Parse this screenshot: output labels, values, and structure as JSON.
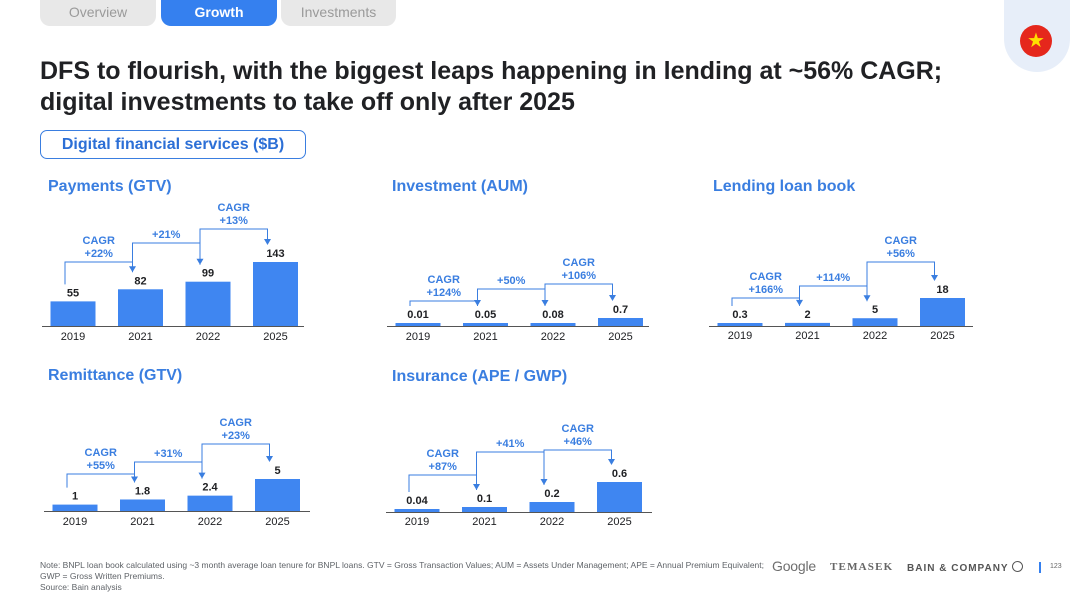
{
  "tabs": [
    {
      "label": "Overview",
      "active": false
    },
    {
      "label": "Growth",
      "active": true
    },
    {
      "label": "Investments",
      "active": false
    }
  ],
  "flag_icon": "vietnam-flag-icon",
  "headline": "DFS to flourish, with the biggest leaps happening in lending at ~56% CAGR; digital investments to take off only after 2025",
  "section_label": "Digital financial services ($B)",
  "colors": {
    "bar": "#3f86f1",
    "accent": "#3a7ee0",
    "axis": "#555555",
    "text": "#202124"
  },
  "chart_data": [
    {
      "type": "bar",
      "title": "Payments (GTV)",
      "categories": [
        "2019",
        "2021",
        "2022",
        "2025"
      ],
      "values": [
        55,
        82,
        99,
        143
      ],
      "value_labels": [
        "55",
        "82",
        "99",
        "143"
      ],
      "annotations": [
        {
          "from": 0,
          "to": 1,
          "text": [
            "CAGR",
            "+22%"
          ]
        },
        {
          "from": 1,
          "to": 2,
          "text": [
            "+21%"
          ]
        },
        {
          "from": 2,
          "to": 3,
          "text": [
            "CAGR",
            "+13%"
          ]
        }
      ]
    },
    {
      "type": "bar",
      "title": "Investment (AUM)",
      "categories": [
        "2019",
        "2021",
        "2022",
        "2025"
      ],
      "values": [
        0.01,
        0.05,
        0.08,
        0.7
      ],
      "value_labels": [
        "0.01",
        "0.05",
        "0.08",
        "0.7"
      ],
      "annotations": [
        {
          "from": 0,
          "to": 1,
          "text": [
            "CAGR",
            "+124%"
          ]
        },
        {
          "from": 1,
          "to": 2,
          "text": [
            "+50%"
          ]
        },
        {
          "from": 2,
          "to": 3,
          "text": [
            "CAGR",
            "+106%"
          ]
        }
      ]
    },
    {
      "type": "bar",
      "title": "Lending loan book",
      "categories": [
        "2019",
        "2021",
        "2022",
        "2025"
      ],
      "values": [
        0.3,
        2,
        5,
        18
      ],
      "value_labels": [
        "0.3",
        "2",
        "5",
        "18"
      ],
      "annotations": [
        {
          "from": 0,
          "to": 1,
          "text": [
            "CAGR",
            "+166%"
          ]
        },
        {
          "from": 1,
          "to": 2,
          "text": [
            "+114%"
          ]
        },
        {
          "from": 2,
          "to": 3,
          "text": [
            "CAGR",
            "+56%"
          ]
        }
      ]
    },
    {
      "type": "bar",
      "title": "Remittance (GTV)",
      "categories": [
        "2019",
        "2021",
        "2022",
        "2025"
      ],
      "values": [
        1,
        1.8,
        2.4,
        5
      ],
      "value_labels": [
        "1",
        "1.8",
        "2.4",
        "5"
      ],
      "annotations": [
        {
          "from": 0,
          "to": 1,
          "text": [
            "CAGR",
            "+55%"
          ]
        },
        {
          "from": 1,
          "to": 2,
          "text": [
            "+31%"
          ]
        },
        {
          "from": 2,
          "to": 3,
          "text": [
            "CAGR",
            "+23%"
          ]
        }
      ]
    },
    {
      "type": "bar",
      "title": "Insurance (APE / GWP)",
      "categories": [
        "2019",
        "2021",
        "2022",
        "2025"
      ],
      "values": [
        0.04,
        0.1,
        0.2,
        0.6
      ],
      "value_labels": [
        "0.04",
        "0.1",
        "0.2",
        "0.6"
      ],
      "annotations": [
        {
          "from": 0,
          "to": 1,
          "text": [
            "CAGR",
            "+87%"
          ]
        },
        {
          "from": 1,
          "to": 2,
          "text": [
            "+41%"
          ]
        },
        {
          "from": 2,
          "to": 3,
          "text": [
            "CAGR",
            "+46%"
          ]
        }
      ]
    }
  ],
  "footnote": {
    "note": "Note: BNPL loan book calculated using ~3 month average loan tenure for BNPL loans. GTV = Gross Transaction Values; AUM = Assets Under Management; APE = Annual Premium Equivalent; GWP = Gross Written Premiums.",
    "source": "Source: Bain analysis"
  },
  "logos": {
    "google": "Google",
    "temasek": "TEMASEK",
    "bain": "BAIN & COMPANY"
  },
  "page_number": "123"
}
